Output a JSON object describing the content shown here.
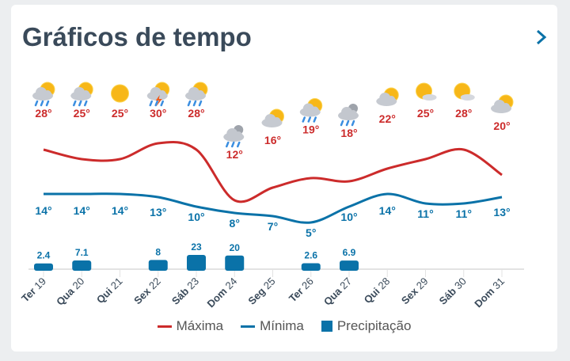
{
  "title": "Gráficos de tempo",
  "colors": {
    "max": "#cc2b2b",
    "min": "#0a72a8",
    "precip": "#0a72a8",
    "title": "#3a4a5a"
  },
  "legend": {
    "max": "Máxima",
    "min": "Mínima",
    "precip": "Precipitação"
  },
  "chart_data": {
    "type": "line",
    "days": [
      {
        "wd": "Ter",
        "d": "19",
        "max": 28,
        "min": 14,
        "precip": 2.4,
        "icon": "partly-cloudy-rain-icon"
      },
      {
        "wd": "Qua",
        "d": "20",
        "max": 25,
        "min": 14,
        "precip": 7.1,
        "icon": "partly-cloudy-rain-icon"
      },
      {
        "wd": "Qui",
        "d": "21",
        "max": 25,
        "min": 14,
        "precip": null,
        "icon": "sun-icon"
      },
      {
        "wd": "Sex",
        "d": "22",
        "max": 30,
        "min": 13,
        "precip": 8,
        "icon": "thunderstorm-icon"
      },
      {
        "wd": "Sáb",
        "d": "23",
        "max": 28,
        "min": 10,
        "precip": 23,
        "icon": "partly-cloudy-rain-icon"
      },
      {
        "wd": "Dom",
        "d": "24",
        "max": 12,
        "min": 8,
        "precip": 20,
        "icon": "cloudy-rain-icon"
      },
      {
        "wd": "Seg",
        "d": "25",
        "max": 16,
        "min": 7,
        "precip": null,
        "icon": "partly-cloudy-icon"
      },
      {
        "wd": "Ter",
        "d": "26",
        "max": 19,
        "min": 5,
        "precip": 2.6,
        "icon": "partly-cloudy-rain-icon"
      },
      {
        "wd": "Qua",
        "d": "27",
        "max": 18,
        "min": 10,
        "precip": 6.9,
        "icon": "cloudy-rain-icon"
      },
      {
        "wd": "Qui",
        "d": "28",
        "max": 22,
        "min": 14,
        "precip": null,
        "icon": "partly-cloudy-icon"
      },
      {
        "wd": "Sex",
        "d": "29",
        "max": 25,
        "min": 11,
        "precip": null,
        "icon": "mostly-sunny-icon"
      },
      {
        "wd": "Sáb",
        "d": "30",
        "max": 28,
        "min": 11,
        "precip": null,
        "icon": "mostly-sunny-icon"
      },
      {
        "wd": "Dom",
        "d": "31",
        "max": 20,
        "min": 13,
        "precip": null,
        "icon": "partly-cloudy-icon"
      }
    ],
    "unit": "°"
  }
}
